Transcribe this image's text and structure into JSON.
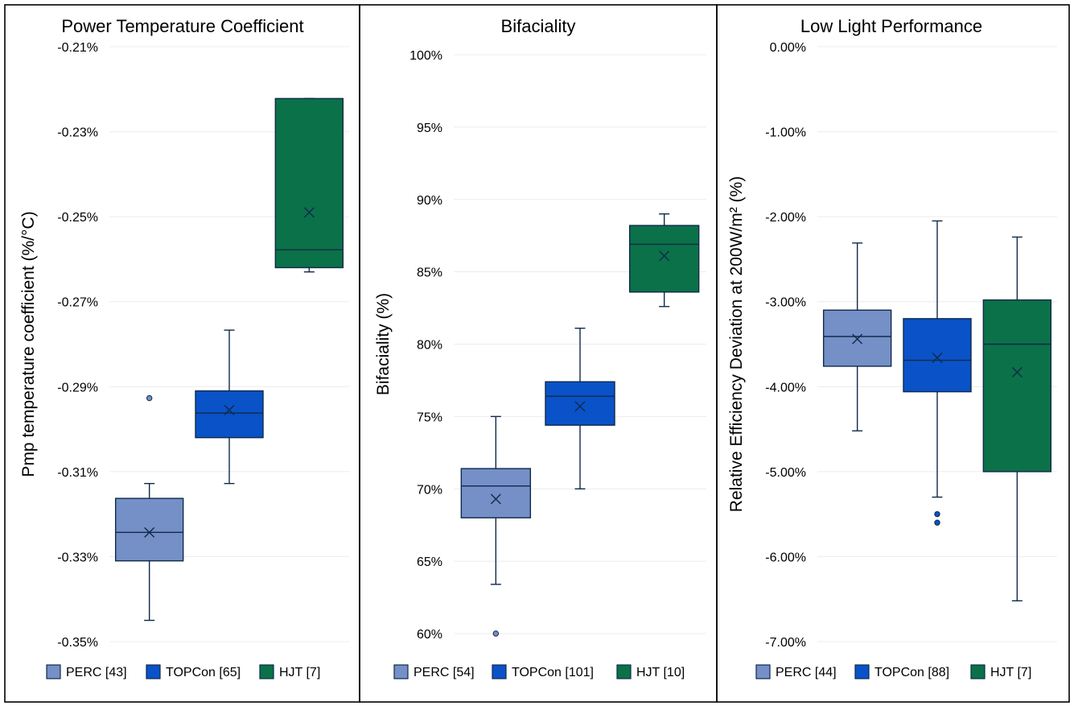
{
  "colors": {
    "PERC": "#7590c7",
    "TOPCon": "#0a52c8",
    "HJT": "#0b7148"
  },
  "chart_data": [
    {
      "type": "box",
      "title": "Power Temperature Coefficient",
      "ylabel": "Pmp temperature coefficient (%/°C)",
      "ylim": [
        -0.35,
        -0.21
      ],
      "yticks": [
        -0.21,
        -0.23,
        -0.25,
        -0.27,
        -0.29,
        -0.31,
        -0.33,
        -0.35
      ],
      "tick_labels": [
        "-0.21%",
        "-0.23%",
        "-0.25%",
        "-0.27%",
        "-0.29%",
        "-0.31%",
        "-0.33%",
        "-0.35%"
      ],
      "grid": true,
      "legend_position": "bottom",
      "series": [
        {
          "name": "PERC [43]",
          "key": "PERC",
          "min": -0.345,
          "q1": -0.331,
          "median": -0.3243,
          "q3": -0.3163,
          "max": -0.3128,
          "mean": -0.3243,
          "outliers": [
            -0.2927
          ]
        },
        {
          "name": "TOPCon [65]",
          "key": "TOPCon",
          "min": -0.3128,
          "q1": -0.302,
          "median": -0.2962,
          "q3": -0.291,
          "max": -0.2767,
          "mean": -0.2955,
          "outliers": []
        },
        {
          "name": "HJT [7]",
          "key": "HJT",
          "min": -0.263,
          "q1": -0.262,
          "median": -0.2578,
          "q3": -0.2222,
          "max": -0.2222,
          "mean": -0.249,
          "outliers": []
        }
      ]
    },
    {
      "type": "box",
      "title": "Bifaciality",
      "ylabel": "Bifaciality (%)",
      "ylim": [
        60,
        100
      ],
      "yticks": [
        100,
        95,
        90,
        85,
        80,
        75,
        70,
        65,
        60
      ],
      "tick_labels": [
        "100%",
        "95%",
        "90%",
        "85%",
        "80%",
        "75%",
        "70%",
        "65%",
        "60%"
      ],
      "grid": true,
      "legend_position": "bottom",
      "series": [
        {
          "name": "PERC [54]",
          "key": "PERC",
          "min": 63.4,
          "q1": 68,
          "median": 70.2,
          "q3": 71.4,
          "max": 75,
          "mean": 69.3,
          "outliers": [
            60
          ]
        },
        {
          "name": "TOPCon [101]",
          "key": "TOPCon",
          "min": 70,
          "q1": 74.4,
          "median": 76.4,
          "q3": 77.4,
          "max": 81.1,
          "mean": 75.7,
          "outliers": []
        },
        {
          "name": "HJT [10]",
          "key": "HJT",
          "min": 82.6,
          "q1": 83.6,
          "median": 86.9,
          "q3": 88.2,
          "max": 89,
          "mean": 86.1,
          "outliers": []
        }
      ]
    },
    {
      "type": "box",
      "title": "Low Light Performance",
      "ylabel": "Relative Efficiency Deviation at 200W/m² (%)",
      "ylim": [
        -7,
        0
      ],
      "yticks": [
        0,
        -1,
        -2,
        -3,
        -4,
        -5,
        -6,
        -7
      ],
      "tick_labels": [
        "0.00%",
        "-1.00%",
        "-2.00%",
        "-3.00%",
        "-4.00%",
        "-5.00%",
        "-6.00%",
        "-7.00%"
      ],
      "grid": true,
      "legend_position": "bottom",
      "series": [
        {
          "name": "PERC [44]",
          "key": "PERC",
          "min": -4.52,
          "q1": -3.76,
          "median": -3.41,
          "q3": -3.1,
          "max": -2.31,
          "mean": -3.44,
          "outliers": []
        },
        {
          "name": "TOPCon [88]",
          "key": "TOPCon",
          "min": -5.3,
          "q1": -4.06,
          "median": -3.69,
          "q3": -3.2,
          "max": -2.05,
          "mean": -3.66,
          "outliers": [
            -5.5,
            -5.6
          ]
        },
        {
          "name": "HJT [7]",
          "key": "HJT",
          "min": -6.52,
          "q1": -5,
          "median": -3.5,
          "q3": -2.98,
          "max": -2.24,
          "mean": -3.83,
          "outliers": []
        }
      ]
    }
  ]
}
